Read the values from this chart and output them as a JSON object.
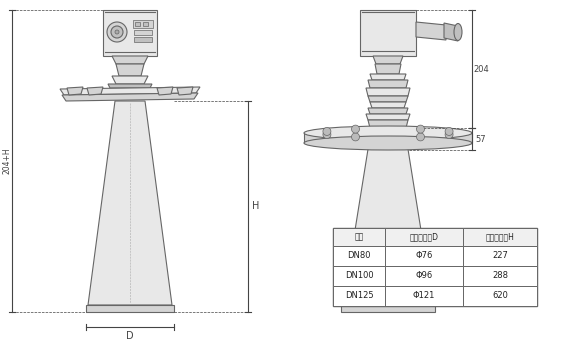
{
  "bg_color": "#ffffff",
  "line_color": "#666666",
  "fill_light": "#e8e8e8",
  "fill_mid": "#d4d4d4",
  "fill_dark": "#c0c0c0",
  "table_header": [
    "法兰",
    "喇叭口直径D",
    "喇叭口高度H"
  ],
  "table_rows": [
    [
      "DN80",
      "Φ76",
      "227"
    ],
    [
      "DN100",
      "Φ96",
      "288"
    ],
    [
      "DN125",
      "Φ121",
      "620"
    ]
  ],
  "dim_204": "204",
  "dim_57": "57",
  "dim_H": "H",
  "dim_204H": "204+H",
  "dim_D": "D"
}
